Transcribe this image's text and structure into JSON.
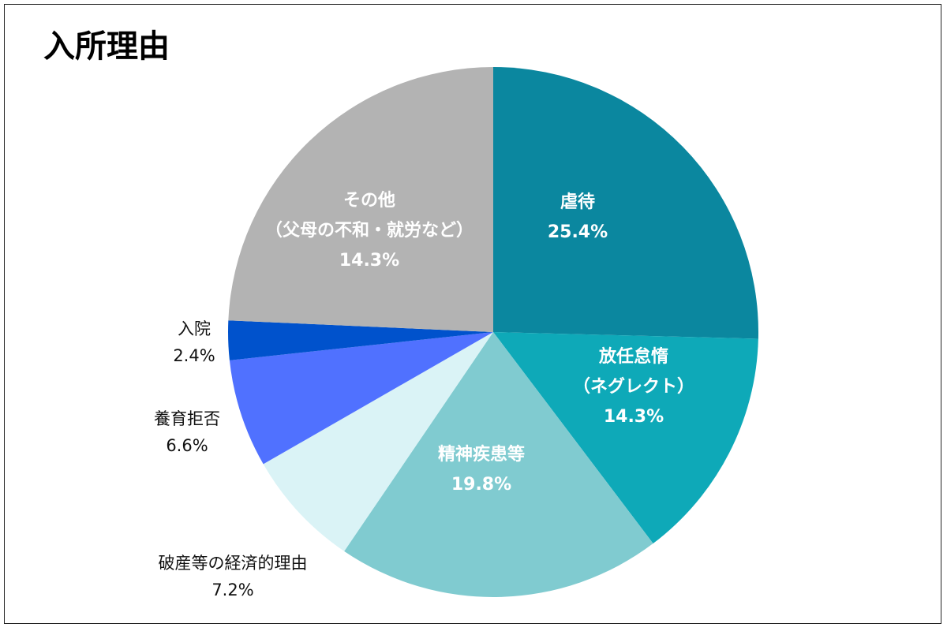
{
  "chart_data": {
    "type": "pie",
    "title": "入所理由",
    "start": "top",
    "direction": "clockwise",
    "slices": [
      {
        "label": "虐待",
        "sublabel": "",
        "value": 25.4,
        "value_label": "25.4%",
        "color": "#0b879f"
      },
      {
        "label": "放任怠惰",
        "sublabel": "（ネグレクト）",
        "value": 14.3,
        "value_label": "14.3%",
        "color": "#0ea9b8"
      },
      {
        "label": "精神疾患等",
        "sublabel": "",
        "value": 19.8,
        "value_label": "19.8%",
        "color": "#80cbd0"
      },
      {
        "label": "破産等の経済的理由",
        "sublabel": "",
        "value": 7.2,
        "value_label": "7.2%",
        "color": "#daf3f6"
      },
      {
        "label": "養育拒否",
        "sublabel": "",
        "value": 6.6,
        "value_label": "6.6%",
        "color": "#5071ff"
      },
      {
        "label": "入院",
        "sublabel": "",
        "value": 2.4,
        "value_label": "2.4%",
        "color": "#0052cc"
      },
      {
        "label": "その他",
        "sublabel": "（父母の不和・就労など）",
        "value": 14.3,
        "value_label": "14.3%",
        "color": "#b3b3b3"
      }
    ]
  }
}
